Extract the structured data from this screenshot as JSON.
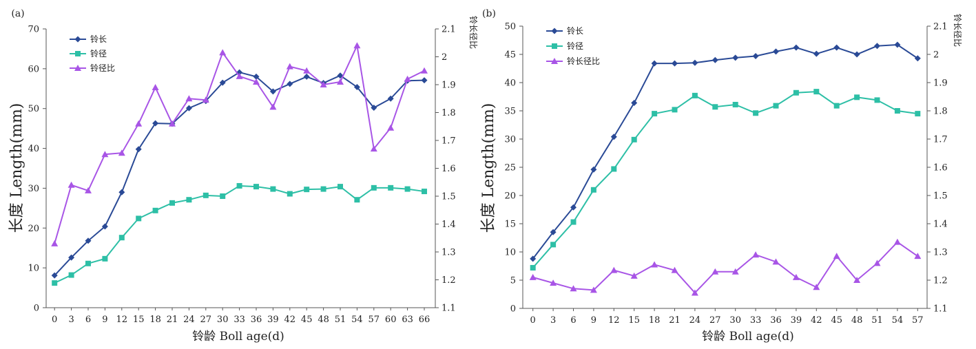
{
  "chart_data": [
    {
      "type": "line",
      "panel_label": "(a)",
      "xlabel": "铃龄 Boll age(d)",
      "ylabel": "长度 Length(mm)",
      "ylabel_right": "铃长径比",
      "x": [
        0,
        3,
        6,
        9,
        12,
        15,
        18,
        21,
        24,
        27,
        30,
        33,
        36,
        39,
        42,
        45,
        48,
        51,
        54,
        57,
        60,
        63,
        66
      ],
      "ylim": [
        0,
        70
      ],
      "yticks": [
        0,
        10,
        20,
        30,
        40,
        50,
        60,
        70
      ],
      "ylim_right": [
        1.1,
        2.1
      ],
      "yticks_right": [
        1.1,
        1.2,
        1.3,
        1.4,
        1.5,
        1.6,
        1.7,
        1.8,
        1.9,
        2,
        2.1
      ],
      "legend_position": "top-left",
      "grid": false,
      "series": [
        {
          "name": "铃长",
          "axis": "left",
          "marker": "diamond",
          "color": "#2a4a96",
          "values": [
            8.1,
            12.6,
            16.8,
            20.4,
            29.0,
            39.8,
            46.3,
            46.2,
            50.1,
            51.9,
            56.5,
            59.1,
            58.0,
            54.3,
            56.2,
            58.0,
            56.4,
            58.3,
            55.4,
            50.2,
            52.5,
            57.0,
            57.1
          ]
        },
        {
          "name": "铃径",
          "axis": "left",
          "marker": "square",
          "color": "#2dbfa6",
          "values": [
            6.2,
            8.2,
            11.1,
            12.3,
            17.6,
            22.4,
            24.4,
            26.3,
            27.1,
            28.2,
            28.0,
            30.6,
            30.4,
            29.8,
            28.6,
            29.7,
            29.8,
            30.4,
            27.1,
            30.1,
            30.1,
            29.8,
            29.2
          ]
        },
        {
          "name": "铃径比",
          "axis": "right",
          "marker": "triangle",
          "color": "#a855e6",
          "values": [
            1.33,
            1.54,
            1.52,
            1.65,
            1.655,
            1.76,
            1.89,
            1.76,
            1.85,
            1.845,
            2.015,
            1.93,
            1.91,
            1.82,
            1.965,
            1.95,
            1.9,
            1.91,
            2.04,
            1.67,
            1.745,
            1.92,
            1.95
          ]
        }
      ]
    },
    {
      "type": "line",
      "panel_label": "(b)",
      "xlabel": "铃龄 Boll age(d)",
      "ylabel": "长度  Length(mm)",
      "ylabel_right": "铃长径比",
      "x": [
        0,
        3,
        6,
        9,
        12,
        15,
        18,
        21,
        24,
        27,
        30,
        33,
        36,
        39,
        42,
        45,
        48,
        51,
        54,
        57
      ],
      "ylim": [
        0,
        50
      ],
      "yticks": [
        0,
        5,
        10,
        15,
        20,
        25,
        30,
        35,
        40,
        45,
        50
      ],
      "ylim_right": [
        1.1,
        2.1
      ],
      "yticks_right": [
        1.1,
        1.2,
        1.3,
        1.4,
        1.5,
        1.6,
        1.7,
        1.8,
        1.9,
        2,
        2.1
      ],
      "legend_position": "top-left",
      "grid": false,
      "series": [
        {
          "name": "铃长",
          "axis": "left",
          "marker": "diamond",
          "color": "#2a4a96",
          "values": [
            8.8,
            13.5,
            17.9,
            24.6,
            30.4,
            36.4,
            43.4,
            43.4,
            43.5,
            44.0,
            44.4,
            44.7,
            45.5,
            46.2,
            45.1,
            46.2,
            45.0,
            46.5,
            46.7,
            44.3
          ]
        },
        {
          "name": "铃径",
          "axis": "left",
          "marker": "square",
          "color": "#2dbfa6",
          "values": [
            7.2,
            11.3,
            15.3,
            21.0,
            24.7,
            29.9,
            34.5,
            35.2,
            37.7,
            35.7,
            36.1,
            34.6,
            35.9,
            38.2,
            38.4,
            35.9,
            37.4,
            36.9,
            35.0,
            34.5
          ]
        },
        {
          "name": "铃长径比",
          "axis": "right",
          "marker": "triangle",
          "color": "#a855e6",
          "values": [
            1.21,
            1.19,
            1.17,
            1.165,
            1.235,
            1.215,
            1.255,
            1.235,
            1.155,
            1.23,
            1.23,
            1.29,
            1.265,
            1.21,
            1.175,
            1.285,
            1.2,
            1.26,
            1.335,
            1.285
          ]
        }
      ]
    }
  ]
}
